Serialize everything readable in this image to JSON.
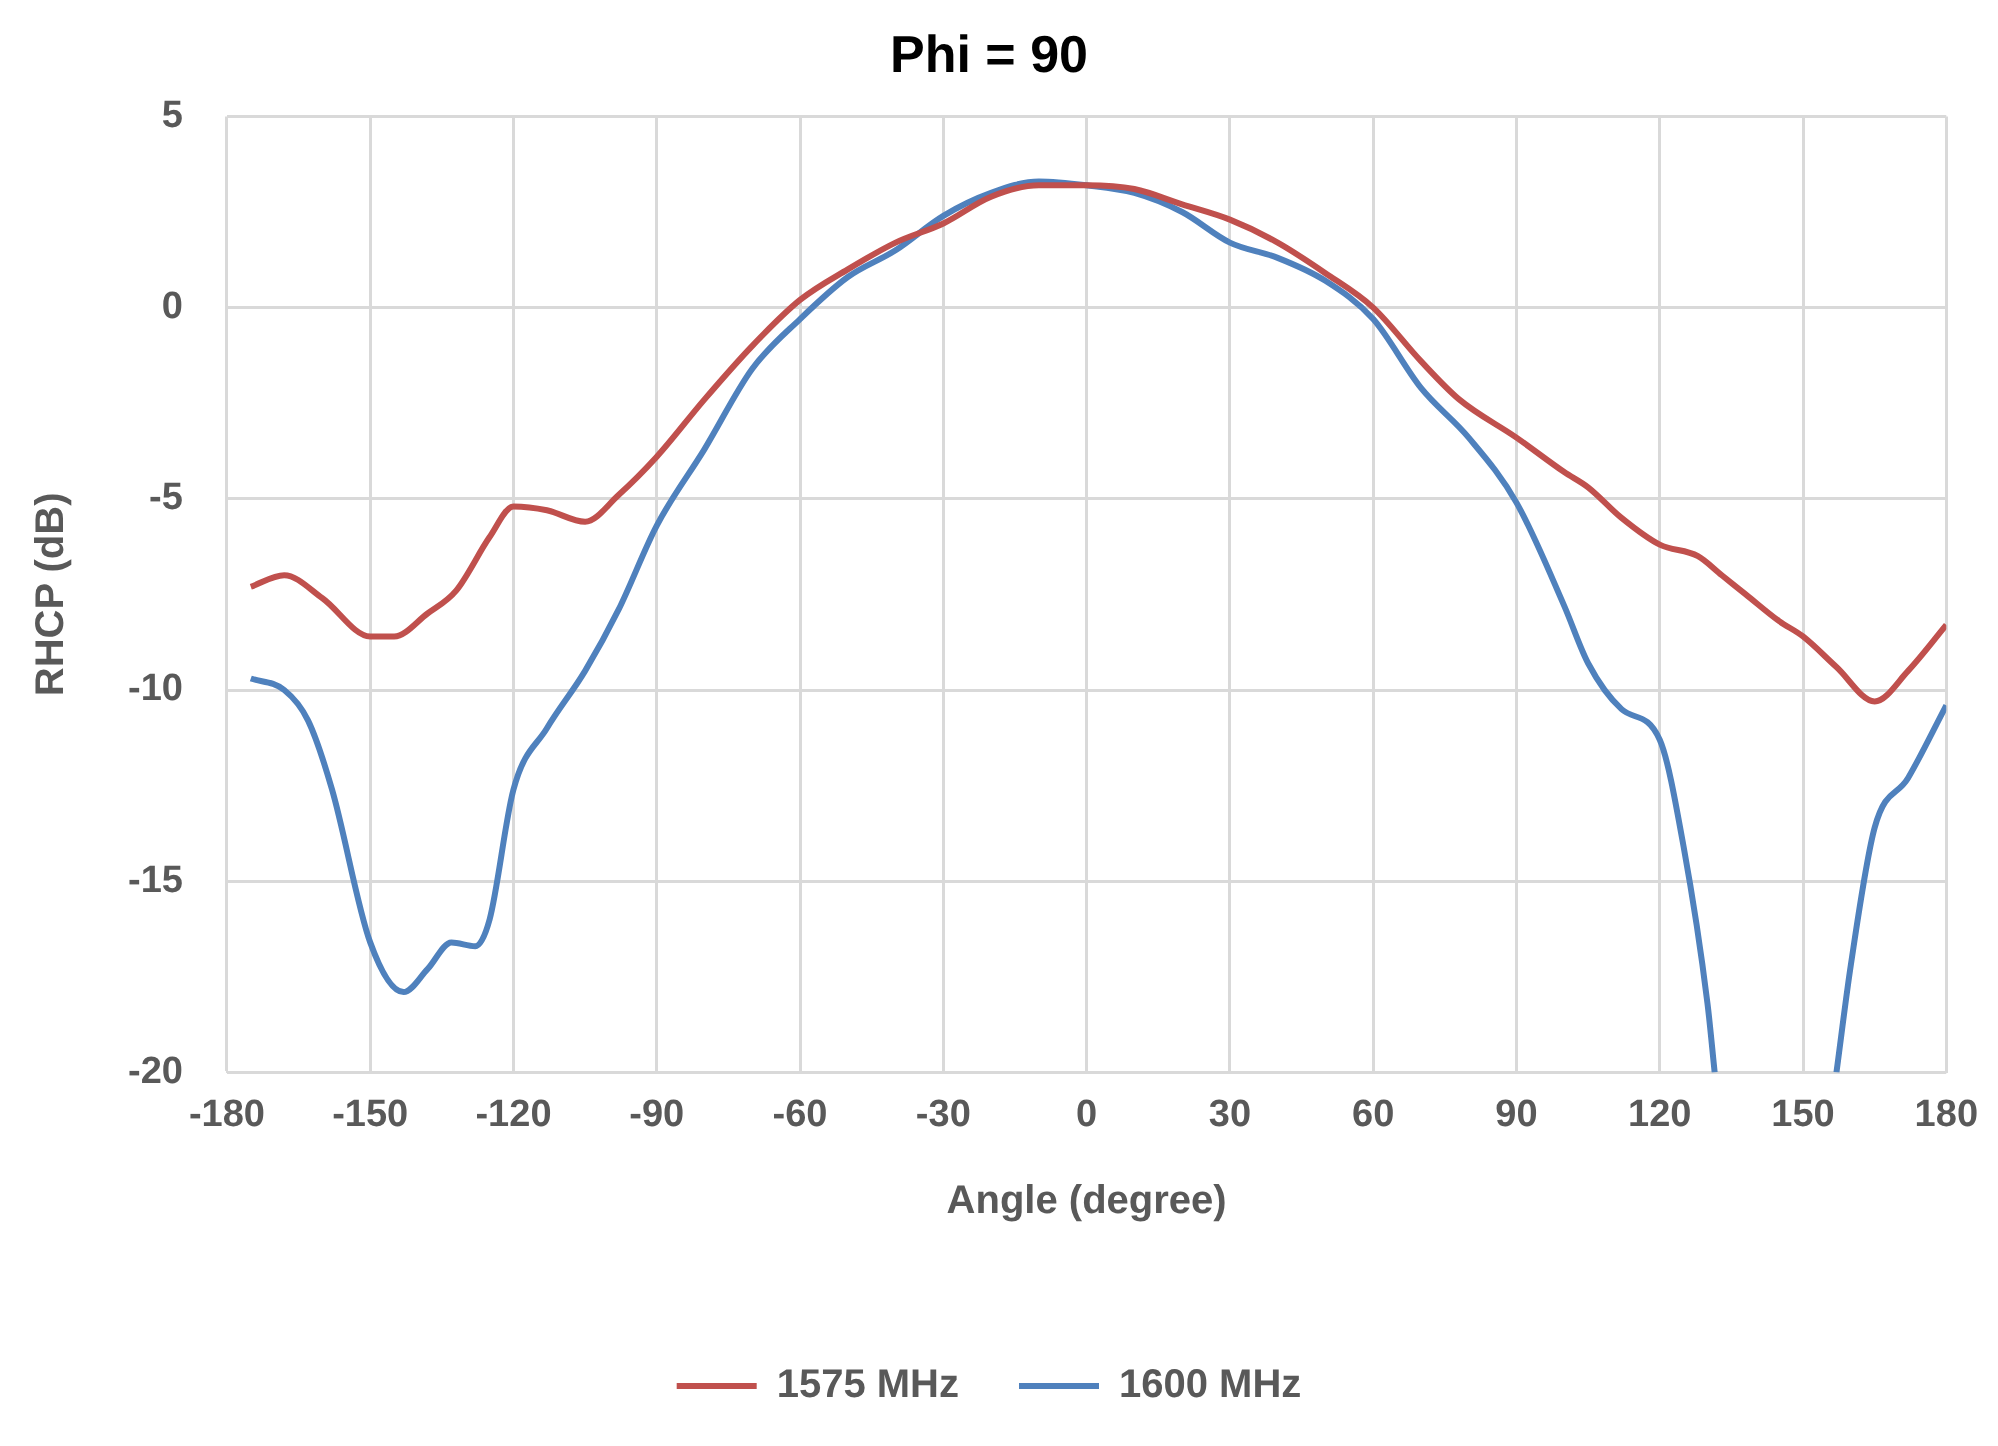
{
  "chart_data": {
    "type": "line",
    "title": "Phi = 90",
    "xlabel": "Angle (degree)",
    "ylabel": "RHCP (dB)",
    "xlim": [
      -180,
      180
    ],
    "xticks": [
      -180,
      -150,
      -120,
      -90,
      -60,
      -30,
      0,
      30,
      60,
      90,
      120,
      150,
      180
    ],
    "ylim": [
      -20,
      5
    ],
    "yticks": [
      -20,
      -15,
      -10,
      -5,
      0,
      5
    ],
    "grid": true,
    "legend": "bottom",
    "marker": "none",
    "line_style": "solid",
    "series": [
      {
        "name": "1575 MHz",
        "color": "#c0504d",
        "x": [
          -175,
          -168,
          -160,
          -150,
          -145,
          -138,
          -132,
          -125,
          -120,
          -113,
          -105,
          -98,
          -90,
          -80,
          -70,
          -60,
          -50,
          -40,
          -30,
          -20,
          -10,
          0,
          10,
          20,
          30,
          40,
          50,
          60,
          70,
          78,
          90,
          100,
          105,
          112,
          120,
          128,
          133,
          138,
          145,
          150,
          157,
          165,
          172,
          180
        ],
        "values": [
          -7.3,
          -7.0,
          -7.6,
          -8.6,
          -8.6,
          -8.0,
          -7.4,
          -6.0,
          -5.2,
          -5.3,
          -5.6,
          -4.9,
          -3.9,
          -2.4,
          -1.0,
          0.2,
          1.0,
          1.7,
          2.2,
          2.9,
          3.2,
          3.2,
          3.1,
          2.7,
          2.3,
          1.7,
          0.9,
          0.0,
          -1.4,
          -2.4,
          -3.4,
          -4.3,
          -4.7,
          -5.5,
          -6.2,
          -6.5,
          -7.0,
          -7.5,
          -8.2,
          -8.6,
          -9.4,
          -10.3,
          -9.5,
          -8.3
        ]
      },
      {
        "name": "1600 MHz",
        "color": "#4f81bd",
        "x": [
          -175,
          -168,
          -163,
          -158,
          -150,
          -143,
          -138,
          -133,
          -128,
          -125,
          -120,
          -113,
          -105,
          -98,
          -90,
          -80,
          -70,
          -60,
          -50,
          -40,
          -30,
          -20,
          -10,
          0,
          10,
          20,
          30,
          40,
          50,
          60,
          70,
          80,
          90,
          100,
          105,
          112,
          120,
          125,
          130,
          131.5,
          145,
          157,
          160,
          165,
          172,
          180
        ],
        "values": [
          -9.7,
          -10.0,
          -10.8,
          -12.6,
          -16.6,
          -17.9,
          -17.3,
          -16.6,
          -16.7,
          -16.0,
          -12.6,
          -11.0,
          -9.5,
          -7.9,
          -5.7,
          -3.7,
          -1.6,
          -0.3,
          0.8,
          1.5,
          2.4,
          3.0,
          3.3,
          3.2,
          3.0,
          2.5,
          1.7,
          1.3,
          0.7,
          -0.3,
          -2.1,
          -3.4,
          -5.1,
          -7.8,
          -9.3,
          -10.5,
          -11.3,
          -14.1,
          -18.2,
          -20,
          null,
          -20,
          -17.2,
          -13.6,
          -12.3,
          -10.4
        ]
      }
    ]
  }
}
